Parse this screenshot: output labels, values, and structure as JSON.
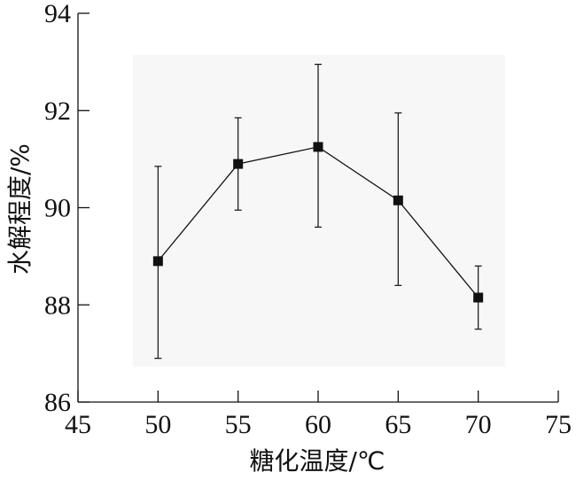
{
  "chart_data": {
    "type": "line",
    "title": "",
    "xlabel": "糖化温度/℃",
    "ylabel": "水解程度/%",
    "xlim": [
      45,
      75
    ],
    "ylim": [
      86,
      94
    ],
    "xticks": [
      45,
      50,
      55,
      60,
      65,
      70,
      75
    ],
    "yticks": [
      86,
      88,
      90,
      92,
      94
    ],
    "grid": false,
    "series": [
      {
        "x": [
          50,
          55,
          60,
          65,
          70
        ],
        "y": [
          88.9,
          90.9,
          91.25,
          90.15,
          88.15
        ],
        "error": [
          [
            2.0,
            1.95
          ],
          [
            0.95,
            0.95
          ],
          [
            1.65,
            1.7
          ],
          [
            1.75,
            1.8
          ],
          [
            0.65,
            0.65
          ]
        ],
        "marker": "square",
        "color": "#111111"
      }
    ]
  }
}
